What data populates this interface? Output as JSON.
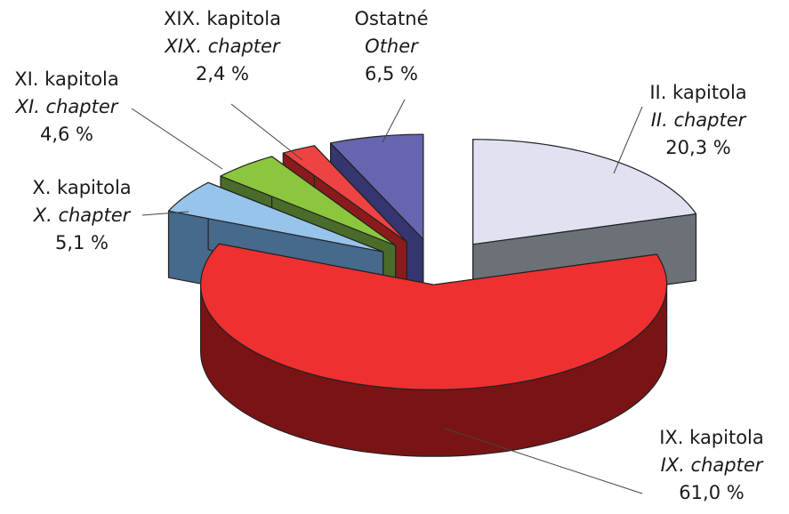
{
  "chart_data": {
    "type": "pie3d",
    "categories": [
      "II. kapitola",
      "IX. kapitola",
      "X. kapitola",
      "XI. kapitola",
      "XIX. kapitola",
      "Ostatné"
    ],
    "categories_en": [
      "II. chapter",
      "IX. chapter",
      "X. chapter",
      "XI. chapter",
      "XIX. chapter",
      "Other"
    ],
    "values": [
      20.3,
      61.0,
      5.1,
      4.6,
      2.4,
      6.5
    ],
    "value_labels": [
      "20,3 %",
      "61,0 %",
      "5,1 %",
      "4,6 %",
      "2,4 %",
      "6,5 %"
    ],
    "colors": [
      "#e0e2f1",
      "#ee3030",
      "#97c4ea",
      "#8cc63f",
      "#ee4343",
      "#6565b0"
    ],
    "side_colors": [
      "#6c7077",
      "#7a1414",
      "#46698c",
      "#4a6c2a",
      "#8a1b1b",
      "#35356f"
    ]
  }
}
